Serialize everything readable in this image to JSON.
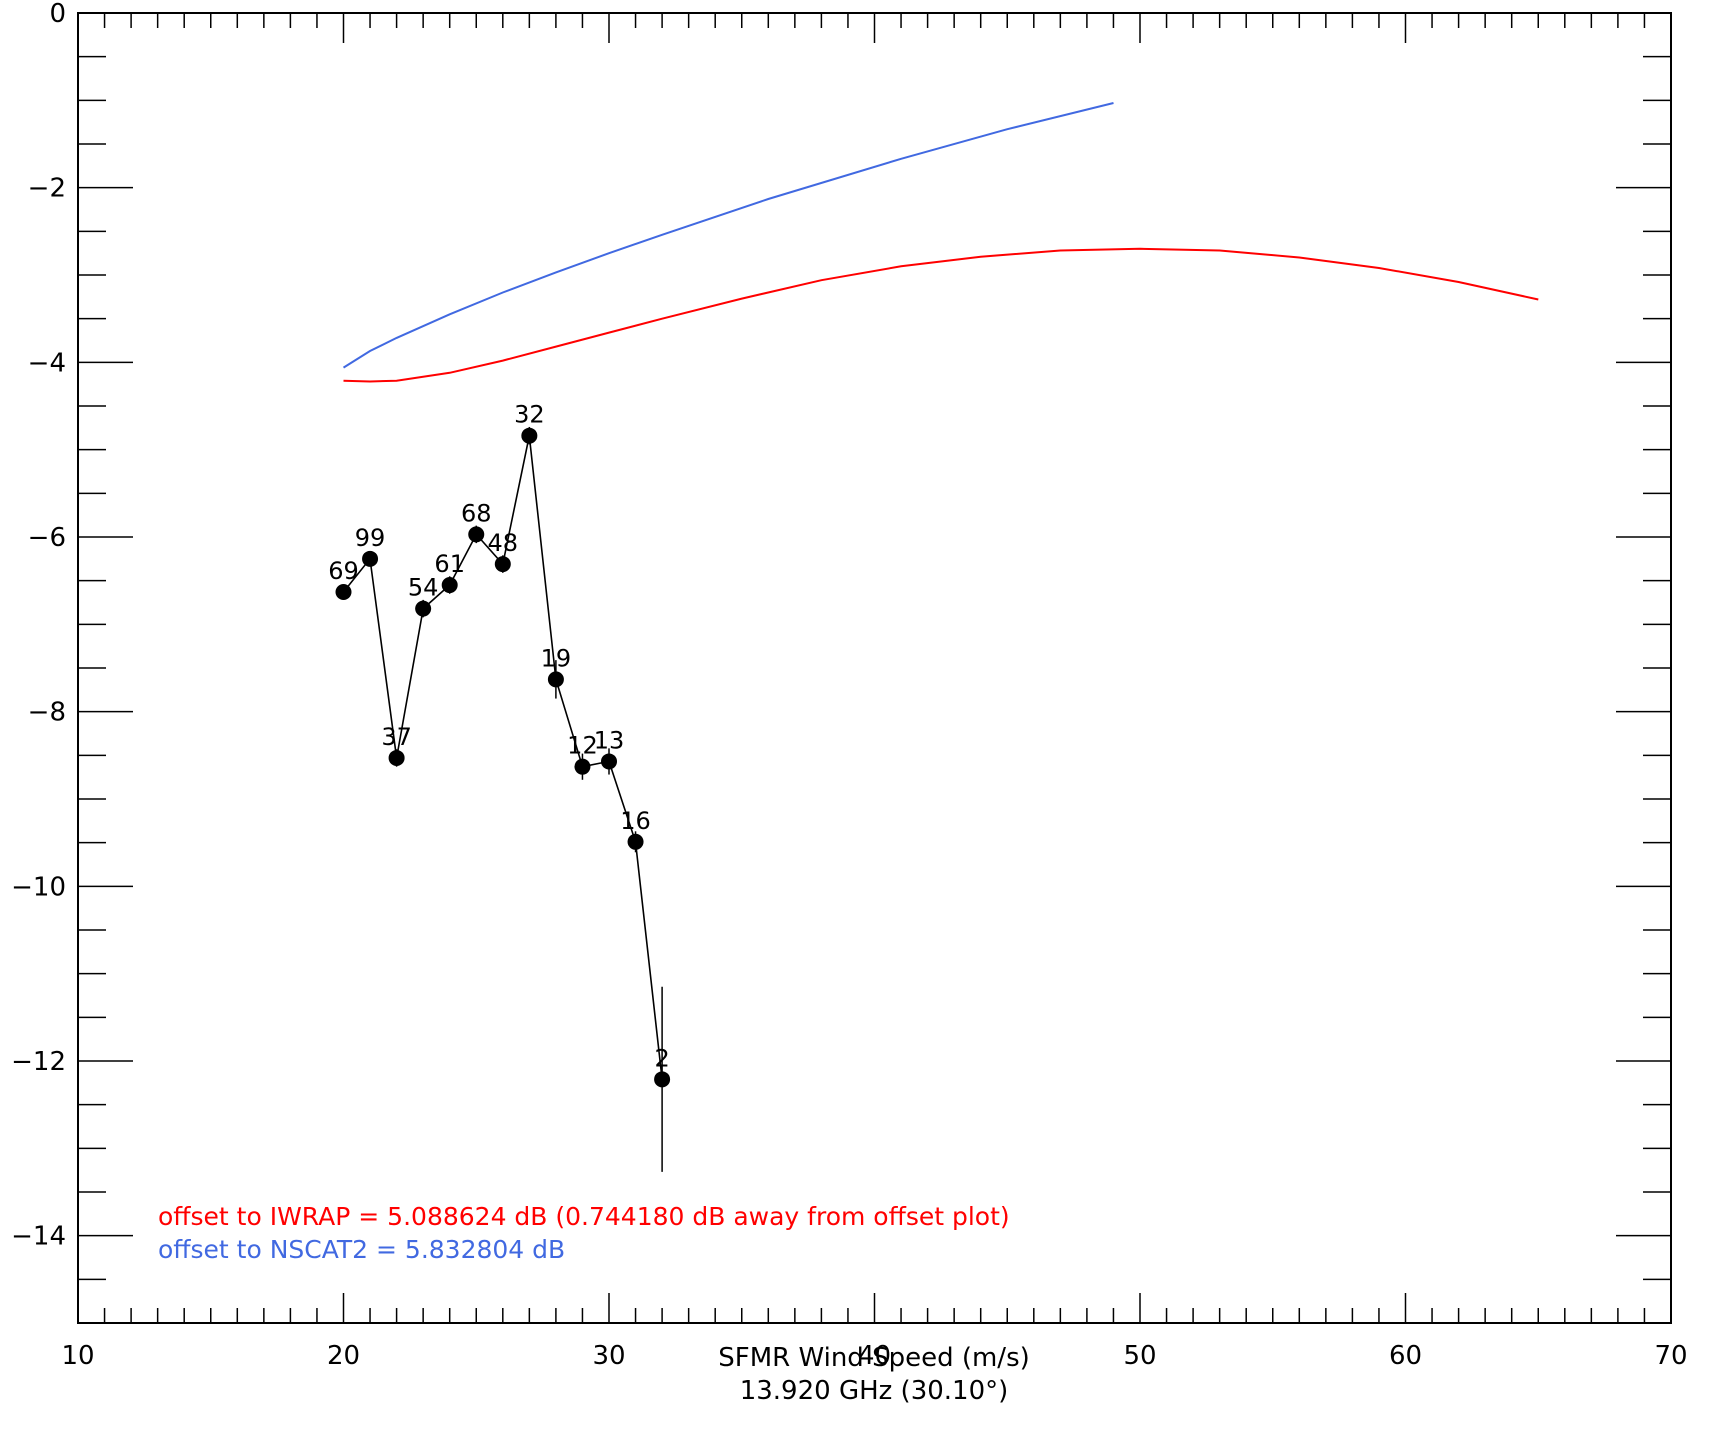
{
  "chart_data": {
    "type": "line",
    "xlabel": "SFMR Wind Speed (m/s)",
    "xlabel2": "13.920 GHz (30.10°)",
    "xlim": [
      10,
      70
    ],
    "ylim": [
      -15,
      0
    ],
    "x_ticks": [
      "10",
      "20",
      "30",
      "40",
      "50",
      "60",
      "70"
    ],
    "y_ticks": [
      "0",
      "−2",
      "−4",
      "−6",
      "−8",
      "−10",
      "−12",
      "−14"
    ],
    "grid": false,
    "series": [
      {
        "color": "#000000",
        "marker": "circle",
        "x": [
          20,
          21,
          22,
          23,
          24,
          25,
          26,
          27,
          28,
          29,
          30,
          31,
          32
        ],
        "y": [
          -6.63,
          -6.25,
          -8.53,
          -6.82,
          -6.55,
          -5.97,
          -6.31,
          -4.84,
          -7.63,
          -8.63,
          -8.57,
          -9.49,
          -12.21
        ],
        "err": [
          0.05,
          0.05,
          0.1,
          0.1,
          0.1,
          0.1,
          0.1,
          0.1,
          0.22,
          0.15,
          0.15,
          0.12,
          1.06
        ],
        "labels": [
          "69",
          "99",
          "37",
          "54",
          "61",
          "68",
          "48",
          "32",
          "19",
          "12",
          "13",
          "16",
          "2"
        ]
      },
      {
        "color": "#ff0000",
        "x": [
          20,
          21,
          22,
          24,
          26,
          28,
          30,
          32,
          35,
          38,
          41,
          44,
          47,
          50,
          53,
          56,
          59,
          62,
          65
        ],
        "y": [
          -4.21,
          -4.22,
          -4.21,
          -4.12,
          -3.98,
          -3.82,
          -3.66,
          -3.5,
          -3.27,
          -3.06,
          -2.9,
          -2.79,
          -2.72,
          -2.7,
          -2.72,
          -2.8,
          -2.92,
          -3.08,
          -3.28
        ]
      },
      {
        "color": "#4169e1",
        "x": [
          20,
          21,
          22,
          24,
          26,
          28,
          30,
          32,
          36,
          41,
          45,
          49
        ],
        "y": [
          -4.06,
          -3.87,
          -3.72,
          -3.45,
          -3.2,
          -2.97,
          -2.75,
          -2.54,
          -2.13,
          -1.67,
          -1.33,
          -1.03
        ]
      }
    ],
    "annotations": [
      {
        "text": "offset to IWRAP = 5.088624 dB (0.744180 dB away from offset plot)",
        "color": "#ff0000"
      },
      {
        "text": "offset to NSCAT2 = 5.832804 dB",
        "color": "#4169e1"
      }
    ]
  }
}
